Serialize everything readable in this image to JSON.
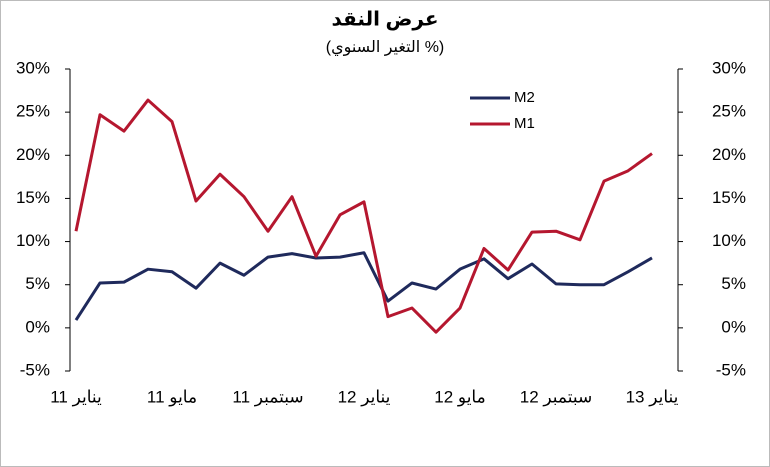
{
  "chart_data": {
    "type": "line",
    "title": "عرض النقد",
    "subtitle": "(التغير السنوي %)",
    "categories": [
      "يناير 11",
      null,
      null,
      null,
      "مايو 11",
      null,
      null,
      null,
      "سبتمبر 11",
      null,
      null,
      null,
      "يناير 12",
      null,
      null,
      null,
      "مايو 12",
      null,
      null,
      null,
      "سبتمبر 12",
      null,
      null,
      null,
      "يناير 13"
    ],
    "series": [
      {
        "name": "M2",
        "color": "#1f2a5c",
        "values": [
          0.9,
          5.2,
          5.3,
          6.8,
          6.5,
          4.6,
          7.5,
          6.1,
          8.2,
          8.6,
          8.1,
          8.2,
          8.7,
          3.1,
          5.2,
          4.5,
          6.8,
          8.0,
          5.7,
          7.4,
          5.1,
          5.0,
          5.0,
          6.5,
          8.1
        ]
      },
      {
        "name": "M1",
        "color": "#b5172f",
        "values": [
          11.2,
          24.7,
          22.8,
          26.4,
          23.9,
          14.7,
          17.8,
          15.2,
          11.2,
          15.2,
          8.3,
          13.1,
          14.6,
          1.3,
          2.3,
          -0.5,
          2.3,
          9.2,
          6.7,
          11.1,
          11.2,
          10.2,
          17.0,
          18.2,
          20.2
        ]
      }
    ],
    "ylim": [
      -5,
      30
    ],
    "yticks": [
      {
        "value": -5,
        "label": "-5%"
      },
      {
        "value": 0,
        "label": "0%"
      },
      {
        "value": 5,
        "label": "5%"
      },
      {
        "value": 10,
        "label": "10%"
      },
      {
        "value": 15,
        "label": "15%"
      },
      {
        "value": 20,
        "label": "20%"
      },
      {
        "value": 25,
        "label": "25%"
      },
      {
        "value": 30,
        "label": "30%"
      }
    ],
    "y2lim": [
      -5,
      30
    ],
    "y2ticks": [
      {
        "value": -5,
        "label": "-5%"
      },
      {
        "value": 0,
        "label": "0%"
      },
      {
        "value": 5,
        "label": "5%"
      },
      {
        "value": 10,
        "label": "10%"
      },
      {
        "value": 15,
        "label": "15%"
      },
      {
        "value": 20,
        "label": "20%"
      },
      {
        "value": 25,
        "label": "25%"
      },
      {
        "value": 30,
        "label": "30%"
      }
    ],
    "grid": false
  }
}
